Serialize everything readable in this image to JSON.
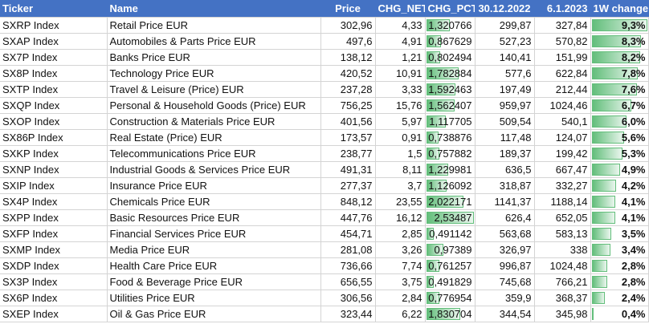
{
  "headers": {
    "ticker": "Ticker",
    "name": "Name",
    "price": "Price",
    "chg_net": "CHG_NET",
    "chg_pct": "CHG_PCT",
    "d1": "30.12.2022",
    "d2": "6.1.2023",
    "week": "1W change"
  },
  "colors": {
    "header": "#4472c4",
    "bar": "#63be7b"
  },
  "rows": [
    {
      "ticker": "SXRP Index",
      "name": "Retail Price EUR",
      "price": "302,96",
      "chg_net": "4,33",
      "chg_pct": "1,320766",
      "d1": "299,87",
      "d2": "327,84",
      "week": "9,3%",
      "chg_pct_value": 1.320766,
      "week_value": 9.3
    },
    {
      "ticker": "SXAP Index",
      "name": "Automobiles & Parts Price EUR",
      "price": "497,6",
      "chg_net": "4,91",
      "chg_pct": "0,867629",
      "d1": "527,23",
      "d2": "570,82",
      "week": "8,3%",
      "chg_pct_value": 0.867629,
      "week_value": 8.3
    },
    {
      "ticker": "SX7P Index",
      "name": "Banks Price EUR",
      "price": "138,12",
      "chg_net": "1,21",
      "chg_pct": "0,802494",
      "d1": "140,41",
      "d2": "151,99",
      "week": "8,2%",
      "chg_pct_value": 0.802494,
      "week_value": 8.2
    },
    {
      "ticker": "SX8P Index",
      "name": "Technology Price EUR",
      "price": "420,52",
      "chg_net": "10,91",
      "chg_pct": "1,782884",
      "d1": "577,6",
      "d2": "622,84",
      "week": "7,8%",
      "chg_pct_value": 1.782884,
      "week_value": 7.8
    },
    {
      "ticker": "SXTP Index",
      "name": "Travel & Leisure (Price) EUR",
      "price": "237,28",
      "chg_net": "3,33",
      "chg_pct": "1,592463",
      "d1": "197,49",
      "d2": "212,44",
      "week": "7,6%",
      "chg_pct_value": 1.592463,
      "week_value": 7.6
    },
    {
      "ticker": "SXQP Index",
      "name": "Personal & Household Goods (Price) EUR",
      "price": "756,25",
      "chg_net": "15,76",
      "chg_pct": "1,562407",
      "d1": "959,97",
      "d2": "1024,46",
      "week": "6,7%",
      "chg_pct_value": 1.562407,
      "week_value": 6.7
    },
    {
      "ticker": "SXOP Index",
      "name": "Construction & Materials Price EUR",
      "price": "401,56",
      "chg_net": "5,97",
      "chg_pct": "1,117705",
      "d1": "509,54",
      "d2": "540,1",
      "week": "6,0%",
      "chg_pct_value": 1.117705,
      "week_value": 6.0
    },
    {
      "ticker": "SX86P Index",
      "name": "Real Estate (Price) EUR",
      "price": "173,57",
      "chg_net": "0,91",
      "chg_pct": "0,738876",
      "d1": "117,48",
      "d2": "124,07",
      "week": "5,6%",
      "chg_pct_value": 0.738876,
      "week_value": 5.6
    },
    {
      "ticker": "SXKP Index",
      "name": "Telecommunications Price EUR",
      "price": "238,77",
      "chg_net": "1,5",
      "chg_pct": "0,757882",
      "d1": "189,37",
      "d2": "199,42",
      "week": "5,3%",
      "chg_pct_value": 0.757882,
      "week_value": 5.3
    },
    {
      "ticker": "SXNP Index",
      "name": "Industrial Goods & Services Price EUR",
      "price": "491,31",
      "chg_net": "8,11",
      "chg_pct": "1,229981",
      "d1": "636,5",
      "d2": "667,47",
      "week": "4,9%",
      "chg_pct_value": 1.229981,
      "week_value": 4.9
    },
    {
      "ticker": "SXIP Index",
      "name": "Insurance Price EUR",
      "price": "277,37",
      "chg_net": "3,7",
      "chg_pct": "1,126092",
      "d1": "318,87",
      "d2": "332,27",
      "week": "4,2%",
      "chg_pct_value": 1.126092,
      "week_value": 4.2
    },
    {
      "ticker": "SX4P Index",
      "name": "Chemicals Price EUR",
      "price": "848,12",
      "chg_net": "23,55",
      "chg_pct": "2,022171",
      "d1": "1141,37",
      "d2": "1188,14",
      "week": "4,1%",
      "chg_pct_value": 2.022171,
      "week_value": 4.1
    },
    {
      "ticker": "SXPP Index",
      "name": "Basic Resources Price EUR",
      "price": "447,76",
      "chg_net": "16,12",
      "chg_pct": "2,53487",
      "d1": "626,4",
      "d2": "652,05",
      "week": "4,1%",
      "chg_pct_value": 2.53487,
      "week_value": 4.1
    },
    {
      "ticker": "SXFP Index",
      "name": "Financial Services Price EUR",
      "price": "454,71",
      "chg_net": "2,85",
      "chg_pct": "0,491142",
      "d1": "563,68",
      "d2": "583,13",
      "week": "3,5%",
      "chg_pct_value": 0.491142,
      "week_value": 3.5
    },
    {
      "ticker": "SXMP Index",
      "name": "Media Price EUR",
      "price": "281,08",
      "chg_net": "3,26",
      "chg_pct": "0,97389",
      "d1": "326,97",
      "d2": "338",
      "week": "3,4%",
      "chg_pct_value": 0.97389,
      "week_value": 3.4
    },
    {
      "ticker": "SXDP Index",
      "name": "Health Care Price EUR",
      "price": "736,66",
      "chg_net": "7,74",
      "chg_pct": "0,761257",
      "d1": "996,87",
      "d2": "1024,48",
      "week": "2,8%",
      "chg_pct_value": 0.761257,
      "week_value": 2.8
    },
    {
      "ticker": "SX3P Index",
      "name": "Food & Beverage Price EUR",
      "price": "656,55",
      "chg_net": "3,75",
      "chg_pct": "0,491829",
      "d1": "745,68",
      "d2": "766,21",
      "week": "2,8%",
      "chg_pct_value": 0.491829,
      "week_value": 2.8
    },
    {
      "ticker": "SX6P Index",
      "name": "Utilities Price EUR",
      "price": "306,56",
      "chg_net": "2,84",
      "chg_pct": "0,776954",
      "d1": "359,9",
      "d2": "368,37",
      "week": "2,4%",
      "chg_pct_value": 0.776954,
      "week_value": 2.4
    },
    {
      "ticker": "SXEP Index",
      "name": "Oil & Gas Price EUR",
      "price": "323,44",
      "chg_net": "6,22",
      "chg_pct": "1,830704",
      "d1": "344,54",
      "d2": "345,98",
      "week": "0,4%",
      "chg_pct_value": 1.830704,
      "week_value": 0.4
    }
  ]
}
